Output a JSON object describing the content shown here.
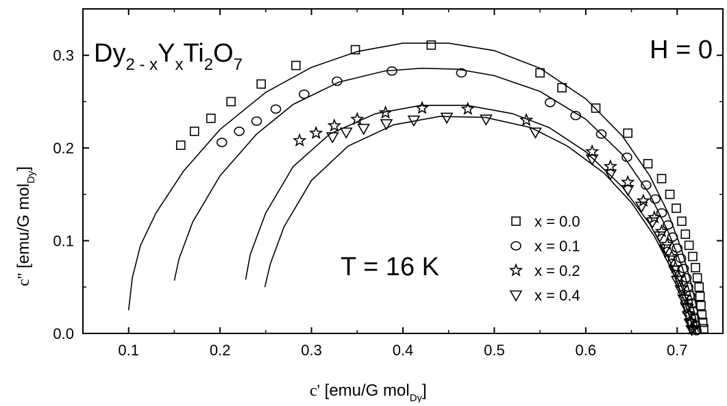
{
  "chart_data": {
    "type": "scatter",
    "title": "",
    "xlabel": "c'  [emu/G mol_Dy]",
    "ylabel": "c''  [emu/G mol_Dy]",
    "xlim": [
      0.05,
      0.75
    ],
    "ylim": [
      0.0,
      0.35
    ],
    "x_ticks": [
      0.1,
      0.2,
      0.3,
      0.4,
      0.5,
      0.6,
      0.7
    ],
    "y_ticks": [
      0.0,
      0.1,
      0.2,
      0.3
    ],
    "grid": false,
    "legend_position": "right-center",
    "annotations": {
      "compound": "Dy2-xYxTi2O7",
      "field": "H = 0",
      "temperature": "T = 16 K"
    },
    "series": [
      {
        "name": "x = 0.0",
        "marker": "square",
        "points": [
          [
            0.157,
            0.203
          ],
          [
            0.172,
            0.218
          ],
          [
            0.19,
            0.232
          ],
          [
            0.212,
            0.25
          ],
          [
            0.245,
            0.269
          ],
          [
            0.283,
            0.289
          ],
          [
            0.348,
            0.306
          ],
          [
            0.431,
            0.311
          ],
          [
            0.55,
            0.281
          ],
          [
            0.574,
            0.265
          ],
          [
            0.611,
            0.243
          ],
          [
            0.646,
            0.216
          ],
          [
            0.668,
            0.183
          ],
          [
            0.683,
            0.167
          ],
          [
            0.692,
            0.15
          ],
          [
            0.699,
            0.135
          ],
          [
            0.705,
            0.121
          ],
          [
            0.709,
            0.107
          ],
          [
            0.713,
            0.095
          ],
          [
            0.717,
            0.083
          ],
          [
            0.72,
            0.071
          ],
          [
            0.722,
            0.06
          ],
          [
            0.724,
            0.05
          ],
          [
            0.725,
            0.04
          ],
          [
            0.726,
            0.03
          ],
          [
            0.727,
            0.02
          ],
          [
            0.728,
            0.012
          ],
          [
            0.729,
            0.005
          ]
        ],
        "fit": [
          [
            0.1,
            0.025
          ],
          [
            0.104,
            0.06
          ],
          [
            0.113,
            0.095
          ],
          [
            0.13,
            0.13
          ],
          [
            0.16,
            0.175
          ],
          [
            0.2,
            0.22
          ],
          [
            0.25,
            0.26
          ],
          [
            0.3,
            0.287
          ],
          [
            0.35,
            0.304
          ],
          [
            0.4,
            0.313
          ],
          [
            0.45,
            0.313
          ],
          [
            0.5,
            0.305
          ],
          [
            0.55,
            0.286
          ],
          [
            0.6,
            0.253
          ],
          [
            0.64,
            0.213
          ],
          [
            0.67,
            0.17
          ],
          [
            0.69,
            0.13
          ],
          [
            0.705,
            0.09
          ],
          [
            0.715,
            0.055
          ],
          [
            0.722,
            0.025
          ],
          [
            0.726,
            0.002
          ]
        ]
      },
      {
        "name": "x = 0.1",
        "marker": "circle",
        "points": [
          [
            0.202,
            0.206
          ],
          [
            0.221,
            0.218
          ],
          [
            0.24,
            0.229
          ],
          [
            0.261,
            0.242
          ],
          [
            0.292,
            0.258
          ],
          [
            0.328,
            0.272
          ],
          [
            0.388,
            0.283
          ],
          [
            0.464,
            0.281
          ],
          [
            0.561,
            0.249
          ],
          [
            0.589,
            0.235
          ],
          [
            0.617,
            0.215
          ],
          [
            0.645,
            0.19
          ],
          [
            0.666,
            0.16
          ],
          [
            0.676,
            0.145
          ],
          [
            0.683,
            0.13
          ],
          [
            0.69,
            0.117
          ],
          [
            0.695,
            0.104
          ],
          [
            0.7,
            0.092
          ],
          [
            0.704,
            0.081
          ],
          [
            0.707,
            0.07
          ],
          [
            0.71,
            0.06
          ],
          [
            0.712,
            0.05
          ],
          [
            0.714,
            0.041
          ],
          [
            0.716,
            0.032
          ],
          [
            0.717,
            0.024
          ],
          [
            0.719,
            0.016
          ],
          [
            0.72,
            0.009
          ],
          [
            0.721,
            0.003
          ]
        ],
        "fit": [
          [
            0.15,
            0.057
          ],
          [
            0.155,
            0.08
          ],
          [
            0.17,
            0.12
          ],
          [
            0.2,
            0.17
          ],
          [
            0.24,
            0.215
          ],
          [
            0.28,
            0.247
          ],
          [
            0.33,
            0.271
          ],
          [
            0.38,
            0.283
          ],
          [
            0.42,
            0.286
          ],
          [
            0.46,
            0.285
          ],
          [
            0.5,
            0.278
          ],
          [
            0.55,
            0.261
          ],
          [
            0.6,
            0.231
          ],
          [
            0.64,
            0.193
          ],
          [
            0.67,
            0.15
          ],
          [
            0.69,
            0.11
          ],
          [
            0.705,
            0.073
          ],
          [
            0.715,
            0.04
          ],
          [
            0.721,
            0.012
          ],
          [
            0.723,
            0.002
          ]
        ]
      },
      {
        "name": "x = 0.2",
        "marker": "star",
        "points": [
          [
            0.287,
            0.208
          ],
          [
            0.305,
            0.216
          ],
          [
            0.325,
            0.224
          ],
          [
            0.35,
            0.231
          ],
          [
            0.381,
            0.238
          ],
          [
            0.421,
            0.243
          ],
          [
            0.471,
            0.242
          ],
          [
            0.535,
            0.23
          ],
          [
            0.607,
            0.196
          ],
          [
            0.627,
            0.18
          ],
          [
            0.646,
            0.163
          ],
          [
            0.663,
            0.143
          ],
          [
            0.675,
            0.125
          ],
          [
            0.683,
            0.11
          ],
          [
            0.689,
            0.096
          ],
          [
            0.694,
            0.083
          ],
          [
            0.698,
            0.071
          ],
          [
            0.702,
            0.06
          ],
          [
            0.705,
            0.049
          ],
          [
            0.708,
            0.039
          ],
          [
            0.711,
            0.029
          ],
          [
            0.713,
            0.02
          ],
          [
            0.715,
            0.012
          ],
          [
            0.717,
            0.005
          ]
        ],
        "fit": [
          [
            0.228,
            0.058
          ],
          [
            0.233,
            0.085
          ],
          [
            0.25,
            0.13
          ],
          [
            0.28,
            0.18
          ],
          [
            0.32,
            0.215
          ],
          [
            0.37,
            0.237
          ],
          [
            0.42,
            0.246
          ],
          [
            0.47,
            0.246
          ],
          [
            0.52,
            0.237
          ],
          [
            0.56,
            0.222
          ],
          [
            0.6,
            0.196
          ],
          [
            0.64,
            0.158
          ],
          [
            0.67,
            0.118
          ],
          [
            0.69,
            0.082
          ],
          [
            0.705,
            0.05
          ],
          [
            0.715,
            0.022
          ],
          [
            0.72,
            0.004
          ]
        ]
      },
      {
        "name": "x = 0.4",
        "marker": "triangle-down",
        "points": [
          [
            0.323,
            0.212
          ],
          [
            0.338,
            0.217
          ],
          [
            0.357,
            0.221
          ],
          [
            0.382,
            0.226
          ],
          [
            0.412,
            0.23
          ],
          [
            0.448,
            0.233
          ],
          [
            0.491,
            0.231
          ],
          [
            0.545,
            0.217
          ],
          [
            0.607,
            0.188
          ],
          [
            0.627,
            0.172
          ],
          [
            0.646,
            0.155
          ],
          [
            0.661,
            0.137
          ],
          [
            0.673,
            0.12
          ],
          [
            0.681,
            0.105
          ],
          [
            0.687,
            0.091
          ],
          [
            0.692,
            0.079
          ],
          [
            0.697,
            0.068
          ],
          [
            0.7,
            0.057
          ],
          [
            0.704,
            0.047
          ],
          [
            0.707,
            0.037
          ],
          [
            0.71,
            0.028
          ],
          [
            0.712,
            0.019
          ],
          [
            0.714,
            0.011
          ],
          [
            0.716,
            0.004
          ]
        ],
        "fit": [
          [
            0.249,
            0.05
          ],
          [
            0.255,
            0.075
          ],
          [
            0.27,
            0.115
          ],
          [
            0.3,
            0.165
          ],
          [
            0.34,
            0.202
          ],
          [
            0.39,
            0.225
          ],
          [
            0.44,
            0.234
          ],
          [
            0.49,
            0.233
          ],
          [
            0.54,
            0.222
          ],
          [
            0.58,
            0.202
          ],
          [
            0.62,
            0.173
          ],
          [
            0.65,
            0.141
          ],
          [
            0.675,
            0.105
          ],
          [
            0.695,
            0.067
          ],
          [
            0.708,
            0.035
          ],
          [
            0.716,
            0.01
          ],
          [
            0.718,
            0.002
          ]
        ]
      }
    ]
  }
}
